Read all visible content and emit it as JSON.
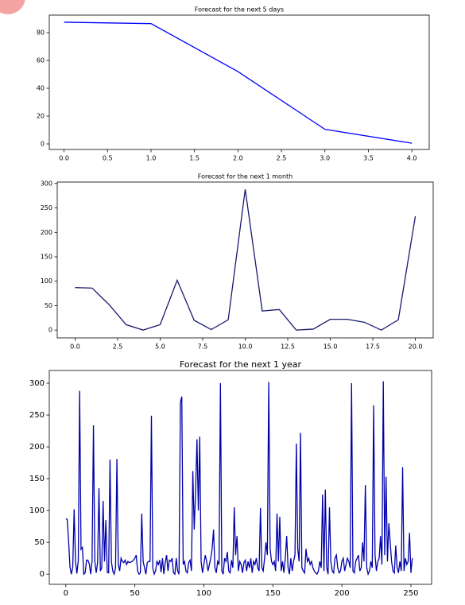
{
  "chart_data": [
    {
      "type": "line",
      "title": "Forecast for the next 5 days",
      "color": "#0000ff",
      "x": [
        0,
        1,
        2,
        3,
        4
      ],
      "values": [
        87.5,
        86.5,
        52,
        10.5,
        0.5
      ],
      "xlim": [
        -0.17,
        4.2
      ],
      "ylim": [
        -4,
        92.6
      ],
      "xticks": [
        {
          "value": 0,
          "label": "0.0"
        },
        {
          "value": 0.5,
          "label": "0.5"
        },
        {
          "value": 1,
          "label": "1.0"
        },
        {
          "value": 1.5,
          "label": "1.5"
        },
        {
          "value": 2,
          "label": "2.0"
        },
        {
          "value": 2.5,
          "label": "2.5"
        },
        {
          "value": 3,
          "label": "3.0"
        },
        {
          "value": 3.5,
          "label": "3.5"
        },
        {
          "value": 4,
          "label": "4.0"
        }
      ],
      "yticks": [
        0,
        20,
        40,
        60,
        80
      ],
      "grid": false
    },
    {
      "type": "line",
      "title": "Forecast for the next 1 month",
      "color": "#191970",
      "x": [
        0,
        1,
        2,
        3,
        4,
        5,
        6,
        7,
        8,
        9,
        10,
        11,
        12,
        13,
        14,
        15,
        16,
        17,
        18,
        19,
        20
      ],
      "values": [
        87,
        86,
        52,
        11,
        0,
        11,
        102,
        20,
        1,
        21,
        288,
        39,
        42,
        0,
        2,
        22,
        22,
        16,
        0,
        21,
        233
      ],
      "xlim": [
        -1.05,
        21.05
      ],
      "ylim": [
        -16,
        303
      ],
      "xticks": [
        {
          "value": 0,
          "label": "0.0"
        },
        {
          "value": 2.5,
          "label": "2.5"
        },
        {
          "value": 5,
          "label": "5.0"
        },
        {
          "value": 7.5,
          "label": "7.5"
        },
        {
          "value": 10,
          "label": "10.0"
        },
        {
          "value": 12.5,
          "label": "12.5"
        },
        {
          "value": 15,
          "label": "15.0"
        },
        {
          "value": 17.5,
          "label": "17.5"
        },
        {
          "value": 20,
          "label": "20.0"
        }
      ],
      "yticks": [
        0,
        50,
        100,
        150,
        200,
        250,
        300
      ],
      "grid": false
    },
    {
      "type": "line",
      "title": "Forecast for the next 1 year",
      "color": "#0000aa",
      "x": [
        0,
        1,
        2,
        3,
        4,
        5,
        6,
        7,
        8,
        9,
        10,
        11,
        12,
        13,
        14,
        15,
        16,
        17,
        18,
        19,
        20,
        21,
        22,
        23,
        24,
        25,
        26,
        27,
        28,
        29,
        30,
        31,
        32,
        33,
        34,
        35,
        36,
        37,
        38,
        39,
        40,
        41,
        42,
        43,
        44,
        45,
        46,
        47,
        48,
        49,
        50,
        51,
        52,
        53,
        54,
        55,
        56,
        57,
        58,
        59,
        60,
        61,
        62,
        63,
        64,
        65,
        66,
        67,
        68,
        69,
        70,
        71,
        72,
        73,
        74,
        75,
        76,
        77,
        78,
        79,
        80,
        81,
        82,
        83,
        84,
        85,
        86,
        87,
        88,
        89,
        90,
        91,
        92,
        93,
        94,
        95,
        96,
        97,
        98,
        99,
        100,
        101,
        102,
        103,
        104,
        105,
        106,
        107,
        108,
        109,
        110,
        111,
        112,
        113,
        114,
        115,
        116,
        117,
        118,
        119,
        120,
        121,
        122,
        123,
        124,
        125,
        126,
        127,
        128,
        129,
        130,
        131,
        132,
        133,
        134,
        135,
        136,
        137,
        138,
        139,
        140,
        141,
        142,
        143,
        144,
        145,
        146,
        147,
        148,
        149,
        150,
        151,
        152,
        153,
        154,
        155,
        156,
        157,
        158,
        159,
        160,
        161,
        162,
        163,
        164,
        165,
        166,
        167,
        168,
        169,
        170,
        171,
        172,
        173,
        174,
        175,
        176,
        177,
        178,
        179,
        180,
        181,
        182,
        183,
        184,
        185,
        186,
        187,
        188,
        189,
        190,
        191,
        192,
        193,
        194,
        195,
        196,
        197,
        198,
        199,
        200,
        201,
        202,
        203,
        204,
        205,
        206,
        207,
        208,
        209,
        210,
        211,
        212,
        213,
        214,
        215,
        216,
        217,
        218,
        219,
        220,
        221,
        222,
        223,
        224,
        225,
        226,
        227,
        228,
        229,
        230,
        231,
        232,
        233,
        234,
        235,
        236,
        237,
        238,
        239,
        240,
        241,
        242,
        243,
        244,
        245,
        246,
        247,
        248,
        249,
        250,
        251
      ],
      "values": [
        87,
        86,
        52,
        11,
        0,
        11,
        102,
        20,
        1,
        21,
        288,
        39,
        42,
        0,
        2,
        22,
        22,
        16,
        0,
        21,
        234,
        20,
        2,
        18,
        135,
        5,
        10,
        115,
        20,
        85,
        3,
        2,
        180,
        20,
        5,
        0,
        10,
        181,
        15,
        5,
        25,
        20,
        18,
        22,
        15,
        20,
        18,
        19,
        20,
        22,
        25,
        30,
        5,
        0,
        2,
        95,
        20,
        10,
        0,
        18,
        20,
        20,
        249,
        10,
        0,
        5,
        20,
        15,
        22,
        3,
        25,
        0,
        18,
        30,
        5,
        22,
        20,
        25,
        2,
        0,
        25,
        5,
        0,
        270,
        279,
        15,
        20,
        5,
        2,
        18,
        22,
        5,
        162,
        70,
        130,
        212,
        100,
        216,
        20,
        2,
        15,
        30,
        20,
        5,
        15,
        25,
        40,
        70,
        10,
        2,
        20,
        15,
        300,
        5,
        0,
        25,
        20,
        35,
        5,
        2,
        22,
        10,
        105,
        30,
        60,
        5,
        20,
        15,
        2,
        18,
        22,
        5,
        20,
        10,
        25,
        2,
        20,
        15,
        25,
        10,
        5,
        104,
        10,
        5,
        25,
        50,
        30,
        302,
        40,
        20,
        15,
        20,
        5,
        95,
        20,
        90,
        5,
        20,
        2,
        25,
        60,
        10,
        0,
        25,
        5,
        20,
        30,
        205,
        40,
        20,
        222,
        10,
        5,
        2,
        40,
        20,
        25,
        15,
        20,
        10,
        5,
        2,
        0,
        5,
        20,
        10,
        125,
        5,
        133,
        10,
        0,
        105,
        20,
        5,
        2,
        25,
        30,
        10,
        2,
        5,
        20,
        25,
        5,
        15,
        25,
        20,
        10,
        300,
        5,
        2,
        20,
        25,
        30,
        5,
        10,
        50,
        20,
        140,
        10,
        0,
        5,
        20,
        10,
        265,
        30,
        5,
        20,
        25,
        60,
        15,
        303,
        30,
        153,
        20,
        80,
        50,
        20,
        5,
        2,
        45,
        10,
        2,
        20,
        5,
        168,
        5,
        25,
        15,
        20,
        65,
        2,
        25
      ],
      "xlim": [
        -12,
        265
      ],
      "ylim": [
        -16,
        320
      ],
      "xticks": [
        0,
        50,
        100,
        150,
        200,
        250
      ],
      "yticks": [
        0,
        50,
        100,
        150,
        200,
        250,
        300
      ],
      "grid": false
    }
  ]
}
